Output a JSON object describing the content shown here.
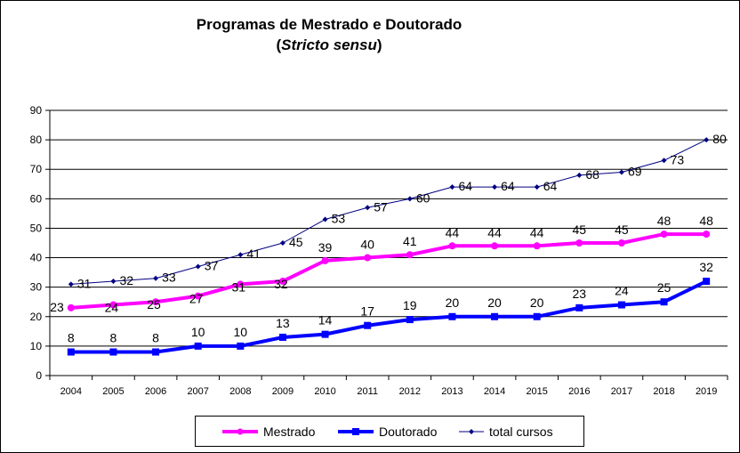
{
  "chart_data": {
    "type": "line",
    "title": "Programas de Mestrado e Doutorado",
    "subtitle_prefix": "(",
    "subtitle_italic": "Stricto sensu",
    "subtitle_suffix": ")",
    "categories": [
      "2004",
      "2005",
      "2006",
      "2007",
      "2008",
      "2009",
      "2010",
      "2011",
      "2012",
      "2013",
      "2014",
      "2015",
      "2016",
      "2017",
      "2018",
      "2019"
    ],
    "ylim": [
      0,
      90
    ],
    "yticks": [
      0,
      10,
      20,
      30,
      40,
      50,
      60,
      70,
      80,
      90
    ],
    "grid": true,
    "legend_position": "bottom",
    "series": [
      {
        "name": "Mestrado",
        "color": "#ff00ff",
        "marker": "circle",
        "values": [
          23,
          24,
          25,
          27,
          31,
          32,
          39,
          40,
          41,
          44,
          44,
          44,
          45,
          45,
          48,
          48
        ]
      },
      {
        "name": "Doutorado",
        "color": "#0000ff",
        "marker": "square",
        "values": [
          8,
          8,
          8,
          10,
          10,
          13,
          14,
          17,
          19,
          20,
          20,
          20,
          23,
          24,
          25,
          32
        ]
      },
      {
        "name": "total cursos",
        "color": "#000080",
        "marker": "diamond",
        "values": [
          31,
          32,
          33,
          37,
          41,
          45,
          53,
          57,
          60,
          64,
          64,
          64,
          68,
          69,
          73,
          80
        ]
      }
    ]
  }
}
